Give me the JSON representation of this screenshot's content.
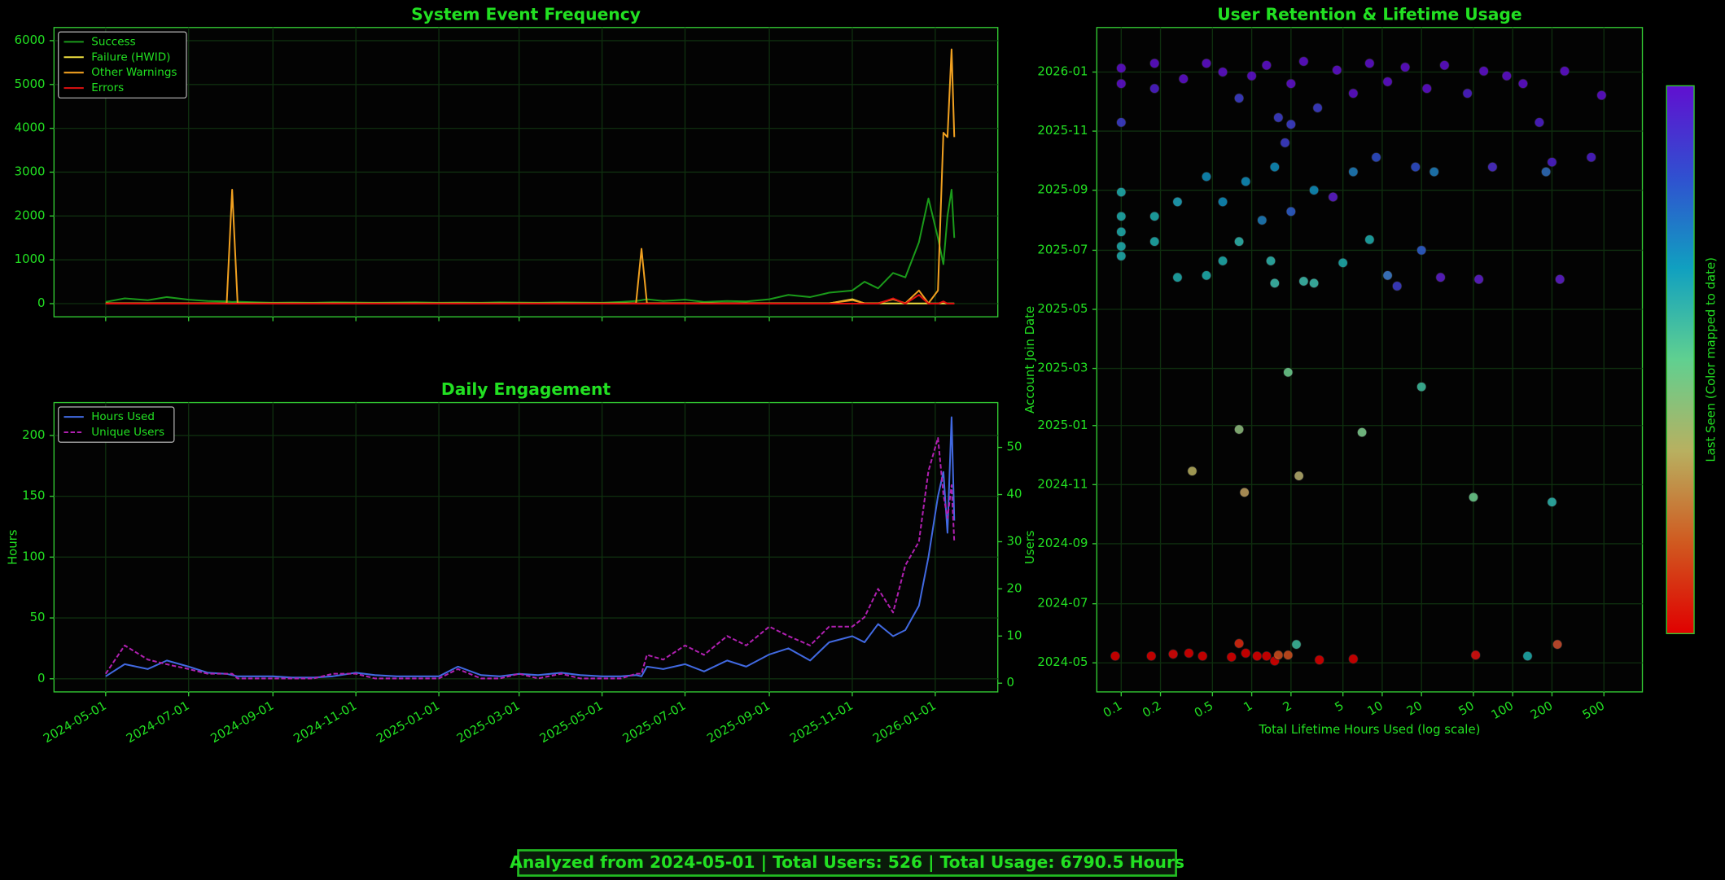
{
  "chart_data": [
    {
      "type": "line",
      "title": "System Event Frequency",
      "x": [
        "2024-05-01",
        "2024-05-15",
        "2024-06-01",
        "2024-06-15",
        "2024-07-01",
        "2024-07-15",
        "2024-07-29",
        "2024-08-02",
        "2024-08-06",
        "2024-08-20",
        "2024-09-01",
        "2024-09-15",
        "2024-10-01",
        "2024-10-15",
        "2024-11-01",
        "2024-11-15",
        "2024-12-01",
        "2024-12-15",
        "2025-01-01",
        "2025-01-15",
        "2025-02-01",
        "2025-02-15",
        "2025-03-01",
        "2025-03-15",
        "2025-04-01",
        "2025-04-15",
        "2025-05-01",
        "2025-05-15",
        "2025-05-26",
        "2025-05-30",
        "2025-06-03",
        "2025-06-15",
        "2025-07-01",
        "2025-07-15",
        "2025-08-01",
        "2025-08-15",
        "2025-09-01",
        "2025-09-15",
        "2025-10-01",
        "2025-10-15",
        "2025-11-01",
        "2025-11-10",
        "2025-11-20",
        "2025-12-01",
        "2025-12-10",
        "2025-12-20",
        "2025-12-27",
        "2026-01-03",
        "2026-01-07",
        "2026-01-10",
        "2026-01-13",
        "2026-01-15"
      ],
      "series": [
        {
          "name": "Success",
          "color": "#1a9a1a",
          "values": [
            40,
            120,
            80,
            150,
            90,
            60,
            50,
            40,
            45,
            30,
            20,
            25,
            20,
            30,
            25,
            20,
            25,
            30,
            20,
            25,
            20,
            30,
            25,
            20,
            30,
            25,
            20,
            40,
            60,
            80,
            100,
            60,
            90,
            40,
            60,
            50,
            100,
            200,
            150,
            250,
            300,
            500,
            350,
            700,
            600,
            1400,
            2400,
            1500,
            900,
            2000,
            2600,
            1500
          ]
        },
        {
          "name": "Failure (HWID)",
          "color": "#f0e040",
          "values": [
            5,
            5,
            5,
            5,
            5,
            5,
            5,
            5,
            5,
            5,
            5,
            5,
            5,
            5,
            5,
            5,
            5,
            5,
            5,
            5,
            5,
            5,
            5,
            5,
            5,
            5,
            5,
            5,
            5,
            5,
            5,
            5,
            5,
            5,
            5,
            5,
            5,
            5,
            5,
            5,
            100,
            5,
            5,
            5,
            5,
            5,
            5,
            5,
            5,
            5,
            5,
            5
          ]
        },
        {
          "name": "Other Warnings",
          "color": "#f0a020",
          "values": [
            10,
            10,
            10,
            10,
            10,
            10,
            10,
            2600,
            10,
            10,
            10,
            10,
            10,
            10,
            10,
            10,
            10,
            10,
            10,
            10,
            10,
            10,
            10,
            10,
            10,
            10,
            10,
            10,
            10,
            1250,
            10,
            10,
            10,
            10,
            10,
            10,
            10,
            10,
            10,
            10,
            80,
            10,
            10,
            100,
            10,
            300,
            10,
            300,
            3900,
            3800,
            5800,
            3800
          ]
        },
        {
          "name": "Errors",
          "color": "#e01010",
          "values": [
            0,
            0,
            0,
            0,
            0,
            0,
            0,
            0,
            0,
            0,
            0,
            0,
            0,
            0,
            0,
            0,
            0,
            0,
            0,
            0,
            0,
            0,
            0,
            0,
            0,
            0,
            0,
            0,
            0,
            0,
            0,
            0,
            0,
            0,
            0,
            0,
            0,
            0,
            0,
            0,
            0,
            0,
            0,
            120,
            0,
            200,
            0,
            0,
            50,
            0,
            0,
            0
          ]
        }
      ],
      "xlim": [
        "2024-03-24",
        "2026-02-16"
      ],
      "ylim": [
        -300,
        6300
      ],
      "yticks": [
        0,
        1000,
        2000,
        3000,
        4000,
        5000,
        6000
      ],
      "grid": true,
      "legend": "upper left"
    },
    {
      "type": "line",
      "title": "Daily Engagement",
      "ylabel": "Hours",
      "y2label": "Users",
      "x": [
        "2024-05-01",
        "2024-05-15",
        "2024-06-01",
        "2024-06-15",
        "2024-07-01",
        "2024-07-15",
        "2024-07-29",
        "2024-08-02",
        "2024-08-06",
        "2024-08-20",
        "2024-09-01",
        "2024-09-15",
        "2024-10-01",
        "2024-10-15",
        "2024-11-01",
        "2024-11-15",
        "2024-12-01",
        "2024-12-15",
        "2025-01-01",
        "2025-01-15",
        "2025-02-01",
        "2025-02-15",
        "2025-03-01",
        "2025-03-15",
        "2025-04-01",
        "2025-04-15",
        "2025-05-01",
        "2025-05-15",
        "2025-05-26",
        "2025-05-30",
        "2025-06-03",
        "2025-06-15",
        "2025-07-01",
        "2025-07-15",
        "2025-08-01",
        "2025-08-15",
        "2025-09-01",
        "2025-09-15",
        "2025-10-01",
        "2025-10-15",
        "2025-11-01",
        "2025-11-10",
        "2025-11-20",
        "2025-12-01",
        "2025-12-10",
        "2025-12-20",
        "2025-12-27",
        "2026-01-03",
        "2026-01-07",
        "2026-01-10",
        "2026-01-13",
        "2026-01-15"
      ],
      "series": [
        {
          "name": "Hours Used",
          "color": "#4169e1",
          "values": [
            2,
            12,
            8,
            15,
            10,
            5,
            4,
            3,
            2,
            2,
            2,
            1,
            1,
            2,
            5,
            3,
            2,
            2,
            2,
            10,
            3,
            2,
            4,
            3,
            5,
            3,
            2,
            2,
            3,
            2,
            10,
            8,
            12,
            6,
            15,
            10,
            20,
            25,
            15,
            30,
            35,
            30,
            45,
            35,
            40,
            60,
            100,
            150,
            170,
            120,
            215,
            130
          ]
        },
        {
          "name": "Unique Users",
          "color": "#b020b0",
          "axis": "y2",
          "linestyle": "dashed",
          "values": [
            2,
            8,
            5,
            4,
            3,
            2,
            2,
            2,
            1,
            1,
            1,
            1,
            1,
            2,
            2,
            1,
            1,
            1,
            1,
            3,
            1,
            1,
            2,
            1,
            2,
            1,
            1,
            1,
            2,
            2,
            6,
            5,
            8,
            6,
            10,
            8,
            12,
            10,
            8,
            12,
            12,
            14,
            20,
            15,
            25,
            30,
            45,
            52,
            40,
            35,
            42,
            30
          ]
        }
      ],
      "xlim": [
        "2024-03-24",
        "2026-02-16"
      ],
      "xticks": [
        "2024-05-01",
        "2024-07-01",
        "2024-09-01",
        "2024-11-01",
        "2025-01-01",
        "2025-03-01",
        "2025-05-01",
        "2025-07-01",
        "2025-09-01",
        "2025-11-01",
        "2026-01-01"
      ],
      "ylim": [
        -10.8,
        227
      ],
      "yticks": [
        0,
        50,
        100,
        150,
        200
      ],
      "y2lim": [
        -1.85,
        59.5
      ],
      "y2ticks": [
        0,
        10,
        20,
        30,
        40,
        50
      ],
      "grid": true,
      "legend": "upper left"
    },
    {
      "type": "scatter",
      "title": "User Retention & Lifetime Usage",
      "xlabel": "Total Lifetime Hours Used (log scale)",
      "ylabel": "Account Join Date",
      "x": [
        0.09,
        0.17,
        0.25,
        0.33,
        0.42,
        0.7,
        0.8,
        0.9,
        1.1,
        1.3,
        1.5,
        1.6,
        1.9,
        2.2,
        3.3,
        6,
        52,
        130,
        220,
        0.35,
        0.8,
        0.88,
        2.3,
        7,
        1.9,
        20,
        50,
        200,
        0.1,
        0.1,
        0.1,
        0.1,
        0.1,
        0.18,
        0.18,
        0.27,
        0.27,
        0.45,
        0.6,
        0.8,
        1.4,
        1.5,
        2.5,
        3,
        5,
        8,
        11,
        13,
        20,
        28,
        55,
        230,
        0.45,
        0.6,
        0.9,
        1.2,
        1.5,
        2,
        3,
        4.2,
        6,
        9,
        18,
        25,
        70,
        180,
        400,
        200,
        0.1,
        0.1,
        0.1,
        0.18,
        0.18,
        0.3,
        0.45,
        0.6,
        0.8,
        1,
        1.3,
        1.6,
        2,
        2.5,
        3.2,
        4.5,
        6,
        8,
        11,
        15,
        22,
        30,
        45,
        60,
        90,
        120,
        160,
        250,
        480,
        2,
        1.8
      ],
      "y": [
        "2024-05-08",
        "2024-05-08",
        "2024-05-10",
        "2024-05-11",
        "2024-05-08",
        "2024-05-07",
        "2024-05-21",
        "2024-05-11",
        "2024-05-08",
        "2024-05-08",
        "2024-05-03",
        "2024-05-09",
        "2024-05-09",
        "2024-05-20",
        "2024-05-04",
        "2024-05-05",
        "2024-05-09",
        "2024-05-08",
        "2024-05-20",
        "2024-11-15",
        "2024-12-28",
        "2024-10-24",
        "2024-11-10",
        "2024-12-25",
        "2025-02-25",
        "2025-02-10",
        "2024-10-19",
        "2024-10-14",
        "2025-06-25",
        "2025-07-05",
        "2025-07-20",
        "2025-08-05",
        "2025-08-30",
        "2025-07-10",
        "2025-08-05",
        "2025-06-03",
        "2025-08-20",
        "2025-06-05",
        "2025-06-20",
        "2025-07-10",
        "2025-06-20",
        "2025-05-28",
        "2025-05-30",
        "2025-05-28",
        "2025-06-18",
        "2025-07-12",
        "2025-06-05",
        "2025-05-25",
        "2025-07-01",
        "2025-06-03",
        "2025-06-01",
        "2025-06-01",
        "2025-09-15",
        "2025-08-20",
        "2025-09-10",
        "2025-08-01",
        "2025-09-25",
        "2025-08-10",
        "2025-09-01",
        "2025-08-25",
        "2025-09-20",
        "2025-10-05",
        "2025-09-25",
        "2025-09-20",
        "2025-09-25",
        "2025-09-20",
        "2025-10-05",
        "2025-09-30",
        "2025-12-20",
        "2026-01-05",
        "2025-11-10",
        "2026-01-10",
        "2025-12-15",
        "2025-12-25",
        "2026-01-10",
        "2026-01-01",
        "2025-12-05",
        "2025-12-28",
        "2026-01-08",
        "2025-11-15",
        "2025-12-20",
        "2026-01-12",
        "2025-11-25",
        "2026-01-03",
        "2025-12-10",
        "2026-01-10",
        "2025-12-22",
        "2026-01-06",
        "2025-12-15",
        "2026-01-08",
        "2025-12-10",
        "2026-01-02",
        "2025-12-28",
        "2025-12-20",
        "2025-11-10",
        "2026-01-02",
        "2025-12-08",
        "2025-11-08",
        "2025-10-20"
      ],
      "colors": [
        "#e00000",
        "#e00000",
        "#e00808",
        "#e00000",
        "#e00000",
        "#e00000",
        "#e02a10",
        "#e00000",
        "#e00000",
        "#e00000",
        "#e00000",
        "#d05020",
        "#d05020",
        "#40c0a0",
        "#e00000",
        "#e00000",
        "#e01010",
        "#20b0b0",
        "#d05030",
        "#b8b060",
        "#90c080",
        "#c0a060",
        "#b8b070",
        "#80d090",
        "#70d090",
        "#40c0a0",
        "#70d090",
        "#30b8b0",
        "#20b0b0",
        "#20b0b0",
        "#20b0b0",
        "#20b0b0",
        "#20b0b0",
        "#20b0b0",
        "#20b0b0",
        "#20b0b0",
        "#20a8c0",
        "#20b0b0",
        "#20b0b0",
        "#30b8b0",
        "#30b8b0",
        "#40c0b0",
        "#40c0b0",
        "#40c0b0",
        "#20b0b0",
        "#20b0b0",
        "#4080d0",
        "#4040d0",
        "#3060d0",
        "#6020d0",
        "#6020d0",
        "#6020d0",
        "#1090c0",
        "#1090c0",
        "#1090c0",
        "#2080c0",
        "#1090c0",
        "#3060d0",
        "#1090c0",
        "#6020d0",
        "#2080c0",
        "#3050d0",
        "#3050d0",
        "#2080c0",
        "#5030d0",
        "#3070c0",
        "#5020d0",
        "#5020d0",
        "#6010d0",
        "#6010d0",
        "#4040d0",
        "#6010d0",
        "#5020d0",
        "#6010d0",
        "#6010d0",
        "#6010d0",
        "#4040d0",
        "#6010d0",
        "#6010d0",
        "#4040d0",
        "#6010d0",
        "#6010d0",
        "#4040d0",
        "#6010d0",
        "#6010d0",
        "#6010d0",
        "#6010d0",
        "#6010d0",
        "#6010d0",
        "#6010d0",
        "#5020d0",
        "#6010d0",
        "#6010d0",
        "#6010d0",
        "#5020d0",
        "#6010d0",
        "#6010d0",
        "#4040d0",
        "#4040d0"
      ],
      "xscale": "log",
      "xlim": [
        0.065,
        986
      ],
      "xticks": [
        0.1,
        0.2,
        0.5,
        1,
        2,
        5,
        10,
        20,
        50,
        100,
        200,
        500
      ],
      "ylim": [
        "2024-04-01",
        "2026-02-16"
      ],
      "yticks": [
        "2024-05",
        "2024-07",
        "2024-09",
        "2024-11",
        "2025-01",
        "2025-03",
        "2025-05",
        "2025-07",
        "2025-09",
        "2025-11",
        "2026-01"
      ],
      "grid": true,
      "colorbar": {
        "label": "Last Seen (Color mapped to date)",
        "colors": [
          "#e00000",
          "#d05a20",
          "#b8b060",
          "#60d090",
          "#10a0c0",
          "#3050d0",
          "#6010d0"
        ]
      }
    }
  ],
  "footer": "Analyzed from 2024-05-01 | Total Users: 526 | Total Usage: 6790.5 Hours"
}
